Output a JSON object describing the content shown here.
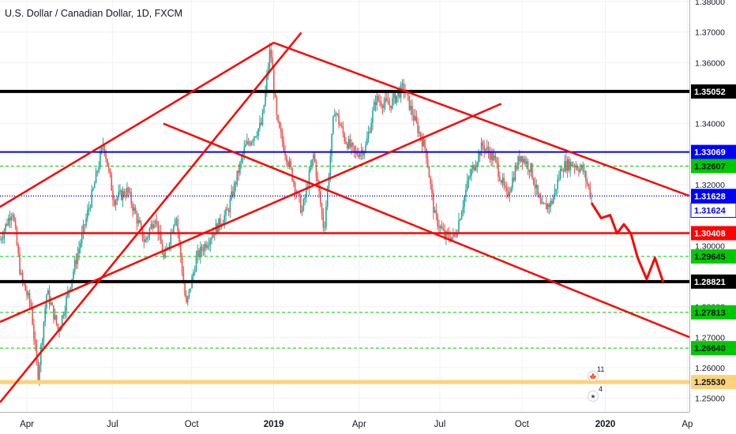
{
  "title": "U.S. Dollar / Canadian Dollar, 1D, FXCM",
  "colors": {
    "up": "#26a69a",
    "down": "#ef5350",
    "trend": "#ff0000",
    "black_level": "#000000",
    "blue_level": "#0000ff",
    "green_level": "#00c800",
    "yellow_level": "#ffd27a",
    "grid": "#eef0f3"
  },
  "chart_data": {
    "type": "candlestick",
    "price_axis": {
      "ticks": [
        "1.38000",
        "1.37000",
        "1.36000",
        "1.34000",
        "1.32000",
        "1.30000",
        "1.28000",
        "1.27000",
        "1.26000",
        "1.25000"
      ],
      "tick_values": [
        1.38,
        1.37,
        1.36,
        1.34,
        1.32,
        1.3,
        1.28,
        1.27,
        1.26,
        1.25
      ],
      "range": [
        1.2455,
        1.3805
      ]
    },
    "time_axis": {
      "labels": [
        "Apr",
        "Jul",
        "Oct",
        "2019",
        "Apr",
        "Jul",
        "Oct",
        "2020",
        "Ap"
      ],
      "bold": [
        false,
        false,
        false,
        true,
        false,
        false,
        false,
        true,
        false
      ]
    },
    "levels": [
      {
        "label": "1.35052",
        "value": 1.35052,
        "style": "black",
        "badge": "black"
      },
      {
        "label": "1.33069",
        "value": 1.33069,
        "style": "blue",
        "badge": "blue"
      },
      {
        "label": "1.32607",
        "value": 1.32607,
        "style": "green-dashed",
        "badge": "green"
      },
      {
        "label": "1.31628",
        "value": 1.31628,
        "style": "blue-dotted",
        "badge": "blue"
      },
      {
        "label": "1.31624",
        "value": 1.31624,
        "style": "none",
        "badge": "blue-outline"
      },
      {
        "label": "1.30408",
        "value": 1.30408,
        "style": "red",
        "badge": "red"
      },
      {
        "label": "1.29645",
        "value": 1.29645,
        "style": "green-dashed",
        "badge": "green"
      },
      {
        "label": "1.28821",
        "value": 1.28821,
        "style": "black",
        "badge": "black"
      },
      {
        "label": "1.27813",
        "value": 1.27813,
        "style": "green-dashed",
        "badge": "green"
      },
      {
        "label": "1.26640",
        "value": 1.2664,
        "style": "green-dashed",
        "badge": "green"
      },
      {
        "label": "1.25530",
        "value": 1.2553,
        "style": "yellow",
        "badge": "yellow"
      }
    ],
    "trendlines": [
      {
        "t1": 0.0,
        "p1": 1.2486,
        "t2": 0.437,
        "p2": 1.3698
      },
      {
        "t1": 0.0,
        "p1": 1.3127,
        "t2": 0.397,
        "p2": 1.3665
      },
      {
        "t1": 0.397,
        "p1": 1.3665,
        "t2": 1.0,
        "p2": 1.3163
      },
      {
        "t1": 0.237,
        "p1": 1.34,
        "t2": 1.0,
        "p2": 1.27
      },
      {
        "t1": 0.0,
        "p1": 1.275,
        "t2": 0.727,
        "p2": 1.3465
      }
    ],
    "events": [
      {
        "name": "canada",
        "count": "11"
      },
      {
        "name": "usa",
        "count": "4"
      }
    ]
  }
}
